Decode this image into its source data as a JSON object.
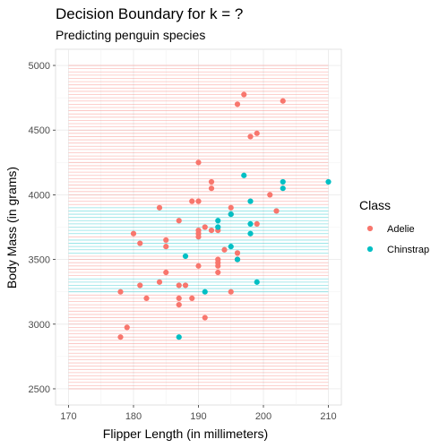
{
  "chart_data": {
    "type": "scatter",
    "title": "Decision Boundary for k = ?",
    "subtitle": "Predicting penguin species",
    "xlabel": "Flipper Length (in millimeters)",
    "ylabel": "Body Mass (in grams)",
    "xlim": [
      168,
      212
    ],
    "ylim": [
      2375,
      5125
    ],
    "x_ticks": [
      170,
      180,
      190,
      200,
      210
    ],
    "y_ticks": [
      2500,
      3000,
      3500,
      4000,
      4500,
      5000
    ],
    "grid": true,
    "legend": {
      "title": "Class",
      "position": "right"
    },
    "colors": {
      "Adelie": "#F8766D",
      "Chinstrap": "#00BFC4"
    },
    "boundary": {
      "x_range": [
        170,
        210
      ],
      "y_range": [
        2500,
        5000
      ],
      "y_step": 25,
      "chinstrap_bands": [
        [
          3250,
          3350
        ],
        [
          3550,
          3650
        ],
        [
          3700,
          3900
        ]
      ]
    },
    "series": [
      {
        "name": "Adelie",
        "points": [
          [
            197,
            4775
          ],
          [
            196,
            4700
          ],
          [
            203,
            4725
          ],
          [
            198,
            4450
          ],
          [
            199,
            4475
          ],
          [
            190,
            4250
          ],
          [
            192,
            4100
          ],
          [
            192,
            4050
          ],
          [
            201,
            4000
          ],
          [
            202,
            3875
          ],
          [
            189,
            3950
          ],
          [
            190,
            3950
          ],
          [
            195,
            3900
          ],
          [
            184,
            3900
          ],
          [
            187,
            3800
          ],
          [
            195,
            3850
          ],
          [
            199,
            3775
          ],
          [
            191,
            3750
          ],
          [
            190,
            3725
          ],
          [
            190,
            3700
          ],
          [
            190,
            3675
          ],
          [
            192,
            3725
          ],
          [
            193,
            3725
          ],
          [
            180,
            3700
          ],
          [
            185,
            3650
          ],
          [
            181,
            3625
          ],
          [
            185,
            3600
          ],
          [
            194,
            3575
          ],
          [
            196,
            3550
          ],
          [
            196,
            3500
          ],
          [
            193,
            3500
          ],
          [
            193,
            3475
          ],
          [
            193,
            3450
          ],
          [
            190,
            3450
          ],
          [
            193,
            3400
          ],
          [
            185,
            3400
          ],
          [
            184,
            3325
          ],
          [
            181,
            3300
          ],
          [
            187,
            3300
          ],
          [
            188,
            3300
          ],
          [
            195,
            3250
          ],
          [
            178,
            3250
          ],
          [
            182,
            3200
          ],
          [
            187,
            3200
          ],
          [
            189,
            3200
          ],
          [
            187,
            3150
          ],
          [
            191,
            3050
          ],
          [
            179,
            2975
          ],
          [
            178,
            2900
          ]
        ]
      },
      {
        "name": "Chinstrap",
        "points": [
          [
            210,
            4100
          ],
          [
            197,
            4150
          ],
          [
            203,
            4100
          ],
          [
            203,
            4050
          ],
          [
            198,
            3950
          ],
          [
            195,
            3850
          ],
          [
            193,
            3800
          ],
          [
            198,
            3775
          ],
          [
            193,
            3750
          ],
          [
            198,
            3700
          ],
          [
            195,
            3600
          ],
          [
            188,
            3525
          ],
          [
            196,
            3500
          ],
          [
            199,
            3325
          ],
          [
            191,
            3250
          ],
          [
            187,
            2900
          ]
        ]
      }
    ]
  }
}
